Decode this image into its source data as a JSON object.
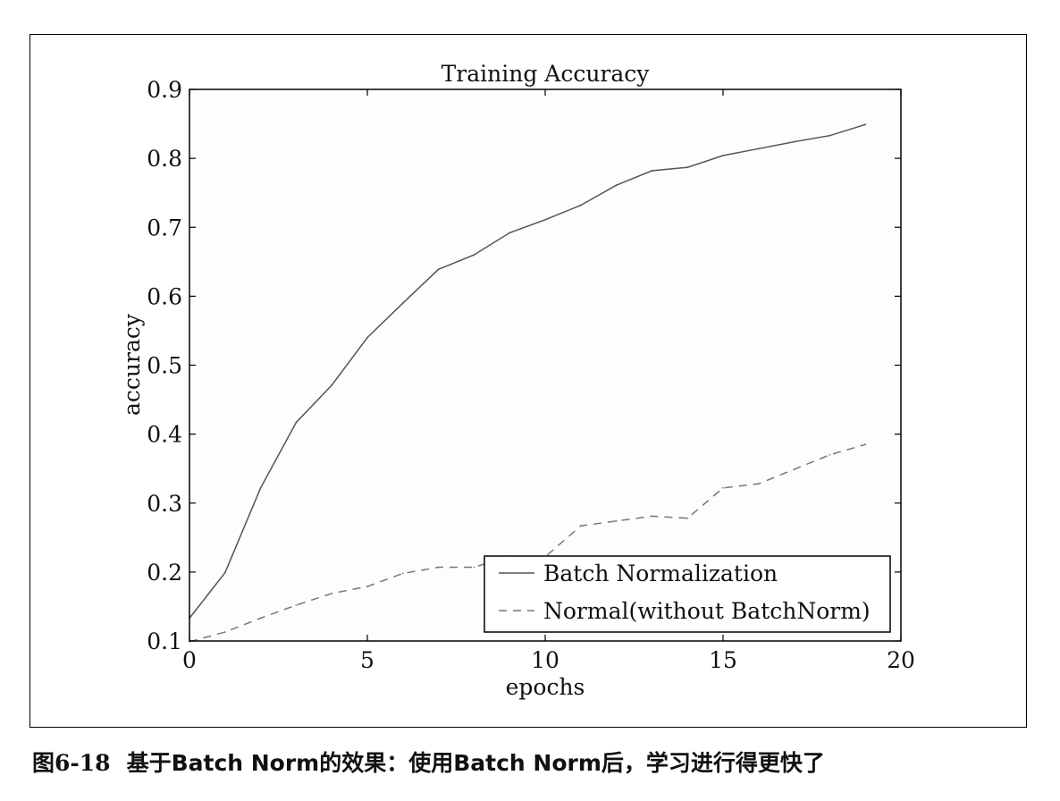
{
  "caption": {
    "number": "图6-18",
    "text": "基于Batch Norm的效果：使用Batch Norm后，学习进行得更快了"
  },
  "chart_data": {
    "type": "line",
    "title": "Training Accuracy",
    "xlabel": "epochs",
    "ylabel": "accuracy",
    "xlim": [
      0,
      20
    ],
    "ylim": [
      0.1,
      0.9
    ],
    "xticks": [
      0,
      5,
      10,
      15,
      20
    ],
    "xtick_labels": [
      "0",
      "5",
      "10",
      "15",
      "20"
    ],
    "yticks": [
      0.1,
      0.2,
      0.3,
      0.4,
      0.5,
      0.6,
      0.7,
      0.8,
      0.9
    ],
    "ytick_labels": [
      "0.1",
      "0.2",
      "0.3",
      "0.4",
      "0.5",
      "0.6",
      "0.7",
      "0.8",
      "0.9"
    ],
    "grid": false,
    "legend_position": "lower-right",
    "x": [
      0,
      1,
      2,
      3,
      4,
      5,
      6,
      7,
      8,
      9,
      10,
      11,
      12,
      13,
      14,
      15,
      16,
      17,
      18,
      19
    ],
    "series": [
      {
        "name": "Batch Normalization",
        "style": "solid",
        "color": "#555555",
        "values": [
          0.133,
          0.199,
          0.322,
          0.417,
          0.471,
          0.54,
          0.59,
          0.639,
          0.66,
          0.692,
          0.711,
          0.732,
          0.761,
          0.782,
          0.787,
          0.804,
          0.814,
          0.824,
          0.833,
          0.849
        ]
      },
      {
        "name": "Normal(without BatchNorm)",
        "style": "dashed",
        "color": "#777777",
        "values": [
          0.099,
          0.113,
          0.133,
          0.152,
          0.169,
          0.179,
          0.198,
          0.207,
          0.207,
          0.223,
          0.222,
          0.267,
          0.274,
          0.281,
          0.278,
          0.322,
          0.328,
          0.349,
          0.37,
          0.385
        ]
      }
    ]
  }
}
